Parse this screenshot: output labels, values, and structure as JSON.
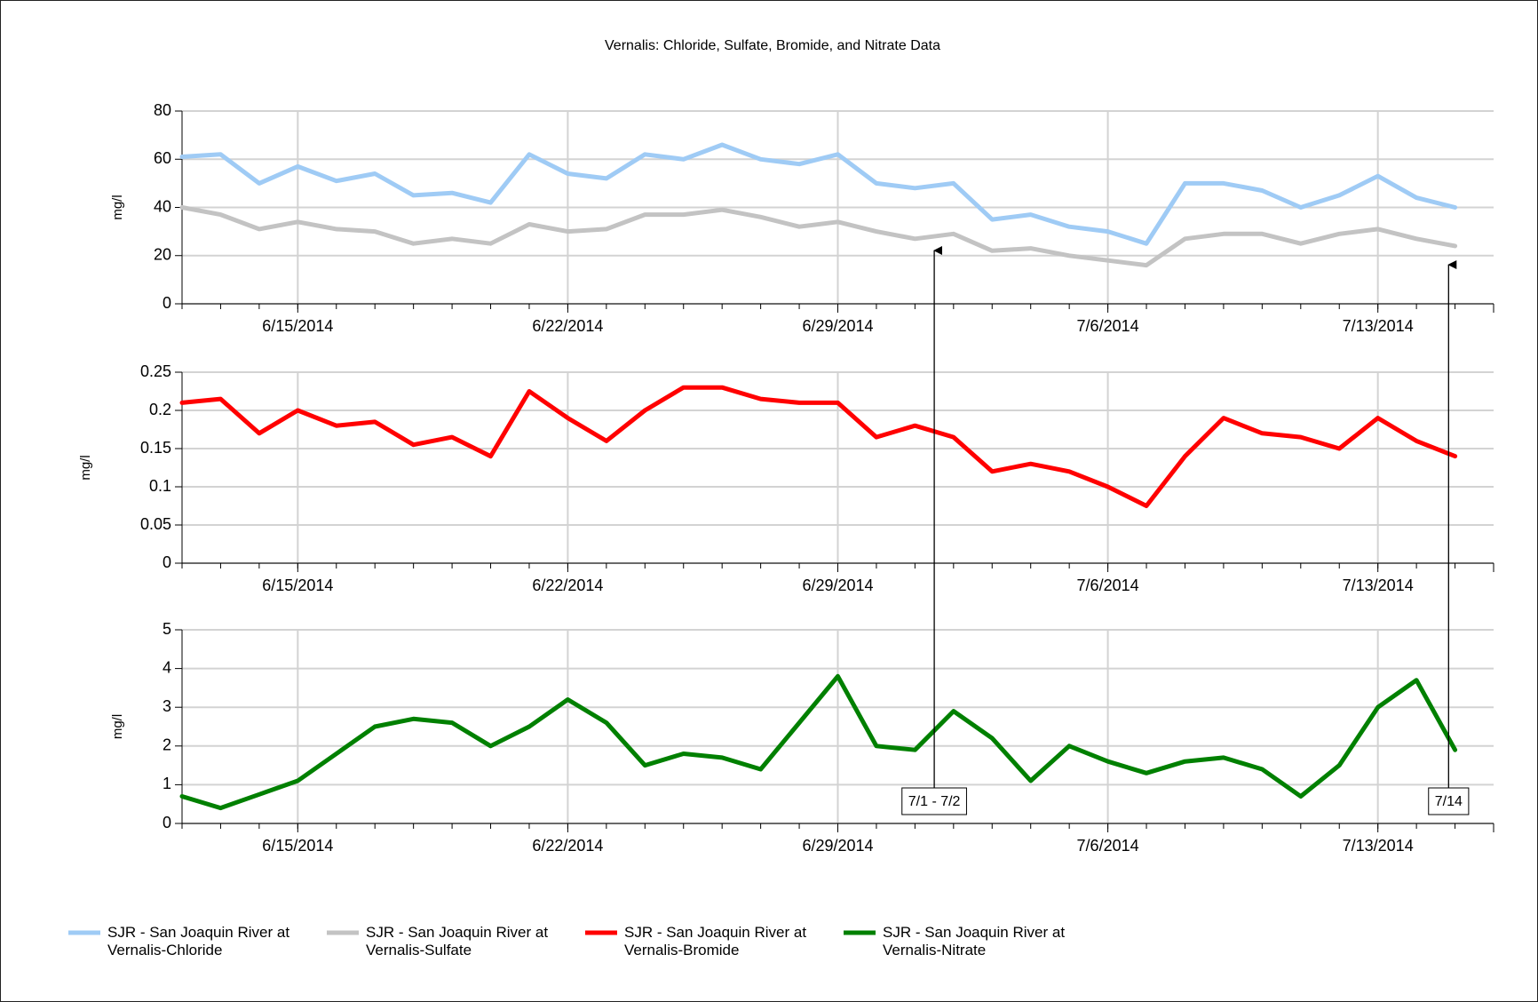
{
  "chart_data": [
    {
      "type": "line",
      "title": "Vernalis:  Chloride, Sulfate, Bromide, and Nitrate Data",
      "ylabel": "mg/l",
      "x": [
        "2014-06-12",
        "2014-06-13",
        "2014-06-14",
        "2014-06-15",
        "2014-06-16",
        "2014-06-17",
        "2014-06-18",
        "2014-06-19",
        "2014-06-20",
        "2014-06-21",
        "2014-06-22",
        "2014-06-23",
        "2014-06-24",
        "2014-06-25",
        "2014-06-26",
        "2014-06-27",
        "2014-06-28",
        "2014-06-29",
        "2014-06-30",
        "2014-07-01",
        "2014-07-02",
        "2014-07-03",
        "2014-07-04",
        "2014-07-05",
        "2014-07-06",
        "2014-07-07",
        "2014-07-08",
        "2014-07-09",
        "2014-07-10",
        "2014-07-11",
        "2014-07-12",
        "2014-07-13",
        "2014-07-14",
        "2014-07-15"
      ],
      "series": [
        {
          "name": "SJR - San Joaquin River at Vernalis-Chloride",
          "color": "#9fcbf5",
          "values": [
            61,
            62,
            50,
            57,
            51,
            54,
            45,
            46,
            42,
            62,
            54,
            52,
            62,
            60,
            66,
            60,
            58,
            62,
            50,
            48,
            50,
            35,
            37,
            32,
            30,
            25,
            50,
            50,
            47,
            40,
            45,
            53,
            44,
            40
          ]
        },
        {
          "name": "SJR - San Joaquin River at Vernalis-Sulfate",
          "color": "#c3c3c3",
          "values": [
            40,
            37,
            31,
            34,
            31,
            30,
            25,
            27,
            25,
            33,
            30,
            31,
            37,
            37,
            39,
            36,
            32,
            34,
            30,
            27,
            29,
            22,
            23,
            20,
            18,
            16,
            27,
            29,
            29,
            25,
            29,
            31,
            27,
            24
          ]
        }
      ],
      "xlim": [
        "2014-06-12",
        "2014-07-16"
      ],
      "xticks": [
        {
          "value": "2014-06-15",
          "label": "6/15/2014"
        },
        {
          "value": "2014-06-22",
          "label": "6/22/2014"
        },
        {
          "value": "2014-06-29",
          "label": "6/29/2014"
        },
        {
          "value": "2014-07-06",
          "label": "7/6/2014"
        },
        {
          "value": "2014-07-13",
          "label": "7/13/2014"
        }
      ],
      "ylim": [
        0,
        80
      ],
      "yticks": [
        0,
        20,
        40,
        60,
        80
      ],
      "grid": true
    },
    {
      "type": "line",
      "ylabel": "mg/l",
      "x": [
        "2014-06-12",
        "2014-06-13",
        "2014-06-14",
        "2014-06-15",
        "2014-06-16",
        "2014-06-17",
        "2014-06-18",
        "2014-06-19",
        "2014-06-20",
        "2014-06-21",
        "2014-06-22",
        "2014-06-23",
        "2014-06-24",
        "2014-06-25",
        "2014-06-26",
        "2014-06-27",
        "2014-06-28",
        "2014-06-29",
        "2014-06-30",
        "2014-07-01",
        "2014-07-02",
        "2014-07-03",
        "2014-07-04",
        "2014-07-05",
        "2014-07-06",
        "2014-07-07",
        "2014-07-08",
        "2014-07-09",
        "2014-07-10",
        "2014-07-11",
        "2014-07-12",
        "2014-07-13",
        "2014-07-14",
        "2014-07-15"
      ],
      "series": [
        {
          "name": "SJR - San Joaquin River at Vernalis-Bromide",
          "color": "#ff0000",
          "values": [
            0.21,
            0.215,
            0.17,
            0.2,
            0.18,
            0.185,
            0.155,
            0.165,
            0.14,
            0.225,
            0.19,
            0.16,
            0.2,
            0.23,
            0.23,
            0.215,
            0.21,
            0.21,
            0.165,
            0.18,
            0.165,
            0.12,
            0.13,
            0.12,
            0.1,
            0.075,
            0.14,
            0.19,
            0.17,
            0.165,
            0.15,
            0.19,
            0.16,
            0.14
          ]
        }
      ],
      "xlim": [
        "2014-06-12",
        "2014-07-16"
      ],
      "xticks": [
        {
          "value": "2014-06-15",
          "label": "6/15/2014"
        },
        {
          "value": "2014-06-22",
          "label": "6/22/2014"
        },
        {
          "value": "2014-06-29",
          "label": "6/29/2014"
        },
        {
          "value": "2014-07-06",
          "label": "7/6/2014"
        },
        {
          "value": "2014-07-13",
          "label": "7/13/2014"
        }
      ],
      "ylim": [
        0,
        0.25
      ],
      "yticks": [
        0,
        0.05,
        0.1,
        0.15,
        0.2,
        0.25
      ],
      "grid": true
    },
    {
      "type": "line",
      "ylabel": "mg/l",
      "x": [
        "2014-06-12",
        "2014-06-13",
        "2014-06-14",
        "2014-06-15",
        "2014-06-16",
        "2014-06-17",
        "2014-06-18",
        "2014-06-19",
        "2014-06-20",
        "2014-06-21",
        "2014-06-22",
        "2014-06-23",
        "2014-06-24",
        "2014-06-25",
        "2014-06-26",
        "2014-06-27",
        "2014-06-28",
        "2014-06-29",
        "2014-06-30",
        "2014-07-01",
        "2014-07-02",
        "2014-07-03",
        "2014-07-04",
        "2014-07-05",
        "2014-07-06",
        "2014-07-07",
        "2014-07-08",
        "2014-07-09",
        "2014-07-10",
        "2014-07-11",
        "2014-07-12",
        "2014-07-13",
        "2014-07-14",
        "2014-07-15"
      ],
      "series": [
        {
          "name": "SJR - San Joaquin River at Vernalis-Nitrate",
          "color": "#008000",
          "values": [
            0.7,
            0.4,
            0.75,
            1.1,
            1.8,
            2.5,
            2.7,
            2.6,
            2.0,
            2.5,
            3.2,
            2.6,
            1.5,
            1.8,
            1.7,
            1.4,
            2.6,
            3.8,
            2.0,
            1.9,
            2.9,
            2.2,
            1.1,
            2.0,
            1.6,
            1.3,
            1.6,
            1.7,
            1.4,
            0.7,
            1.5,
            3.0,
            3.7,
            1.9
          ]
        }
      ],
      "xlim": [
        "2014-06-12",
        "2014-07-16"
      ],
      "xticks": [
        {
          "value": "2014-06-15",
          "label": "6/15/2014"
        },
        {
          "value": "2014-06-22",
          "label": "6/22/2014"
        },
        {
          "value": "2014-06-29",
          "label": "6/29/2014"
        },
        {
          "value": "2014-07-06",
          "label": "7/6/2014"
        },
        {
          "value": "2014-07-13",
          "label": "7/13/2014"
        }
      ],
      "ylim": [
        0,
        5
      ],
      "yticks": [
        0,
        1,
        2,
        3,
        4,
        5
      ],
      "grid": true,
      "annotations": [
        {
          "text": "7/1 - 7/2",
          "x": "2014-07-01T12:00"
        },
        {
          "text": "7/14",
          "x": "2014-07-14T20:00"
        }
      ]
    }
  ]
}
